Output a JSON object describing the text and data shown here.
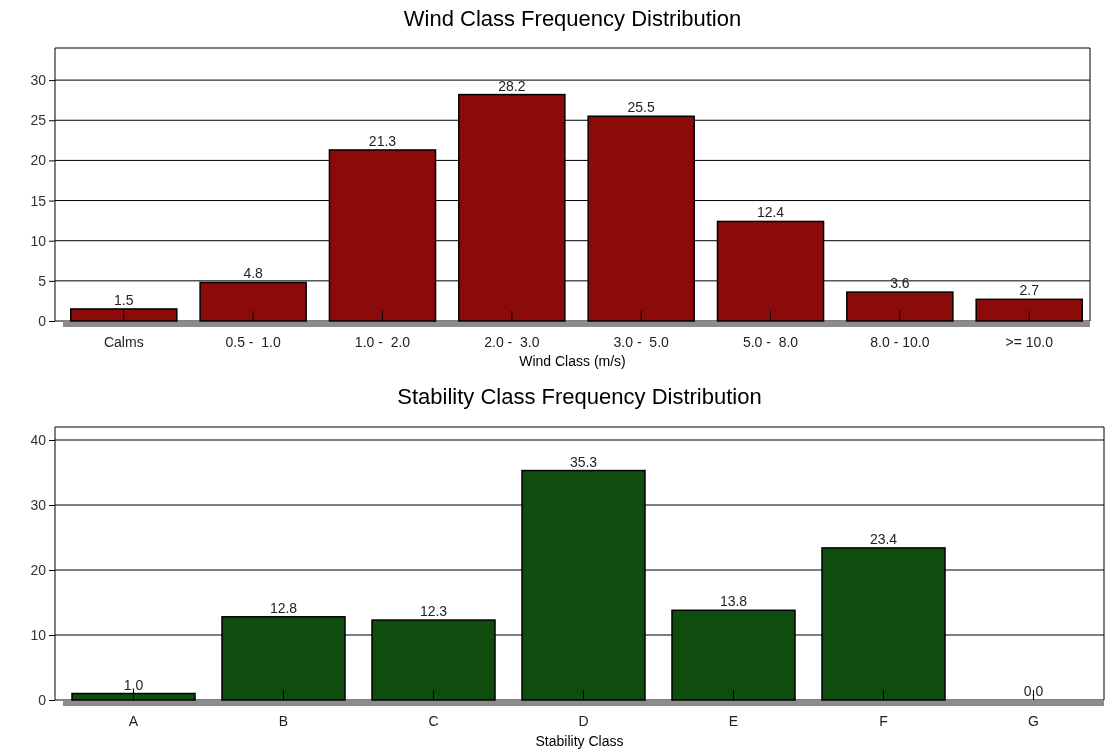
{
  "chart_data": [
    {
      "type": "bar",
      "title": "Wind Class Frequency Distribution",
      "xlabel": "Wind Class (m/s)",
      "categories": [
        "Calms",
        "0.5 -  1.0",
        "1.0 -  2.0",
        "2.0 -  3.0",
        "3.0 -  5.0",
        "5.0 -  8.0",
        "8.0 - 10.0",
        ">= 10.0"
      ],
      "values": [
        1.5,
        4.8,
        21.3,
        28.2,
        25.5,
        12.4,
        3.6,
        2.7
      ],
      "color": "#8b0a0a",
      "ylim": [
        0,
        34
      ],
      "yticks": [
        0,
        5,
        10,
        15,
        20,
        25,
        30
      ],
      "grid": "y",
      "data_labels": true
    },
    {
      "type": "bar",
      "title": "Stability Class Frequency Distribution",
      "xlabel": "Stability Class",
      "categories": [
        "A",
        "B",
        "C",
        "D",
        "E",
        "F",
        "G"
      ],
      "values": [
        1.0,
        12.8,
        12.3,
        35.3,
        13.8,
        23.4,
        0.0
      ],
      "value_labels": [
        "1.0",
        "12.8",
        "12.3",
        "35.3",
        "13.8",
        "23.4",
        "0.0"
      ],
      "color": "#0f4d0f",
      "ylim": [
        0,
        42
      ],
      "yticks": [
        0,
        10,
        20,
        30,
        40
      ],
      "grid": "y"
    }
  ]
}
